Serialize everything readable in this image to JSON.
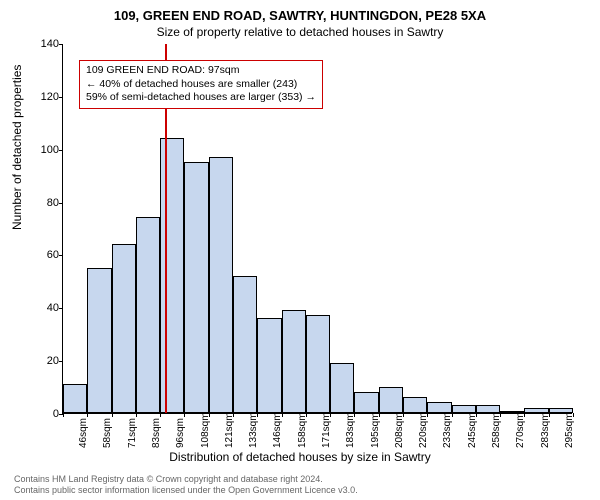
{
  "title": "109, GREEN END ROAD, SAWTRY, HUNTINGDON, PE28 5XA",
  "subtitle": "Size of property relative to detached houses in Sawtry",
  "ylabel": "Number of detached properties",
  "xlabel": "Distribution of detached houses by size in Sawtry",
  "chart": {
    "type": "histogram",
    "ylim": [
      0,
      140
    ],
    "yticks": [
      0,
      20,
      40,
      60,
      80,
      100,
      120,
      140
    ],
    "bar_fill": "#c7d7ee",
    "bar_stroke": "#000000",
    "background": "#ffffff",
    "ref_line_color": "#cc0000",
    "ref_line_x_index": 4.2,
    "annot_border": "#cc0000",
    "categories": [
      "46sqm",
      "58sqm",
      "71sqm",
      "83sqm",
      "96sqm",
      "108sqm",
      "121sqm",
      "133sqm",
      "146sqm",
      "158sqm",
      "171sqm",
      "183sqm",
      "195sqm",
      "208sqm",
      "220sqm",
      "233sqm",
      "245sqm",
      "258sqm",
      "270sqm",
      "283sqm",
      "295sqm"
    ],
    "values": [
      11,
      55,
      64,
      74,
      104,
      95,
      97,
      52,
      36,
      39,
      37,
      19,
      8,
      10,
      6,
      4,
      3,
      3,
      0,
      2,
      2
    ]
  },
  "annotation": {
    "line1": "109 GREEN END ROAD: 97sqm",
    "line2": "← 40% of detached houses are smaller (243)",
    "line3": "59% of semi-detached houses are larger (353) →"
  },
  "credit": {
    "line1": "Contains HM Land Registry data © Crown copyright and database right 2024.",
    "line2": "Contains public sector information licensed under the Open Government Licence v3.0."
  }
}
